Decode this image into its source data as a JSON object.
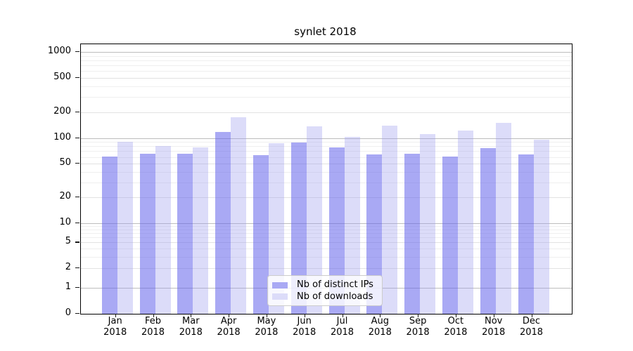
{
  "chart_data": {
    "type": "bar",
    "title": "synlet 2018",
    "categories": [
      "Jan",
      "Feb",
      "Mar",
      "Apr",
      "May",
      "Jun",
      "Jul",
      "Aug",
      "Sep",
      "Oct",
      "Nov",
      "Dec"
    ],
    "year_label": "2018",
    "series": [
      {
        "name": "Nb of distinct IPs",
        "bar_color": "rgba(99,99,235,0.55)",
        "swatch_color": "#a9a9f4",
        "values": [
          61,
          66,
          65,
          118,
          63,
          89,
          78,
          64,
          66,
          61,
          76,
          64
        ]
      },
      {
        "name": "Nb of downloads",
        "bar_color": "rgba(155,155,238,0.35)",
        "swatch_color": "#dcdcf9",
        "values": [
          90,
          80,
          77,
          176,
          87,
          137,
          104,
          140,
          111,
          122,
          150,
          96
        ]
      }
    ],
    "xlabel": "",
    "ylabel": "",
    "yscale": "symlog",
    "ylim": [
      0,
      1300
    ],
    "yticks": [
      0,
      1,
      2,
      5,
      10,
      20,
      50,
      100,
      200,
      500,
      1000
    ],
    "ytick_labels": [
      "0",
      "1",
      "2",
      "5",
      "10",
      "20",
      "50",
      "100",
      "200",
      "500",
      "1000"
    ],
    "yticks_minor": [
      3,
      4,
      6,
      7,
      8,
      9,
      30,
      40,
      60,
      70,
      80,
      90,
      300,
      400,
      600,
      700,
      800,
      900
    ],
    "grid": true,
    "legend_position": "lower center",
    "grid_colors": {
      "power10": "#bdbdbd",
      "mid": "#e2e2e2",
      "minor": "#efefef"
    }
  }
}
